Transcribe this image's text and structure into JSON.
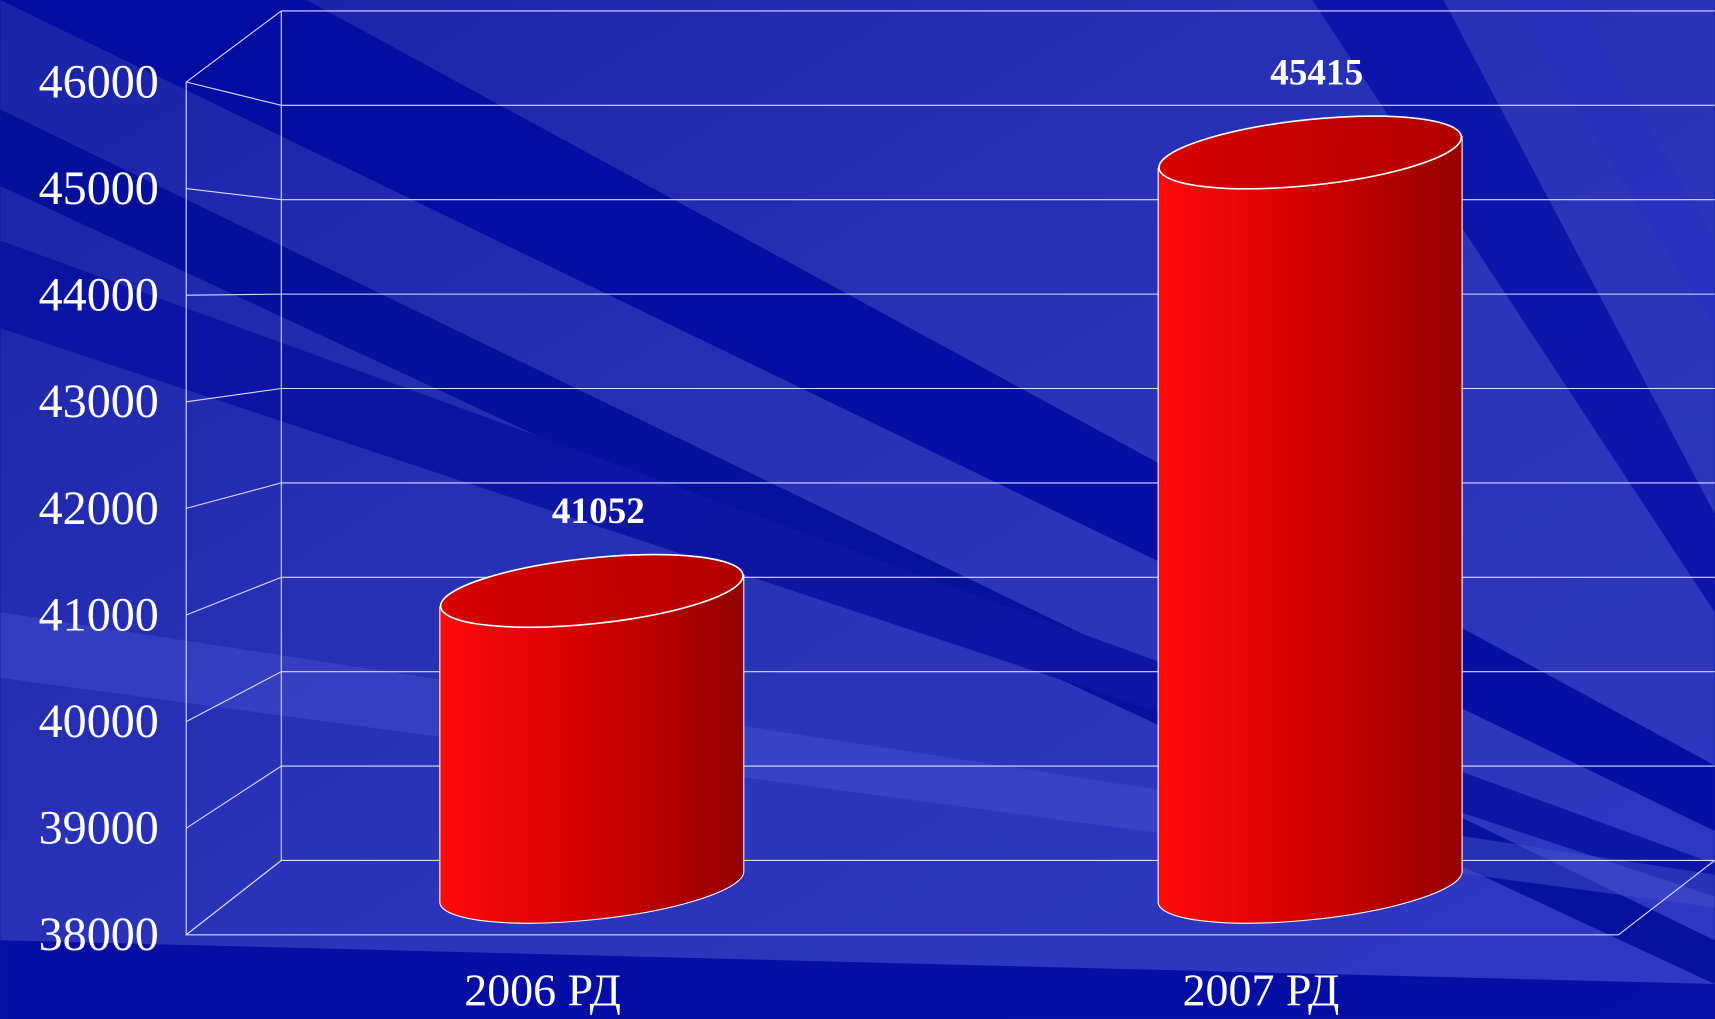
{
  "chart_data": {
    "type": "bar",
    "shape": "cylinder",
    "categories": [
      "2006 РД",
      "2007 РД"
    ],
    "values": [
      41052,
      45415
    ],
    "color": "#e00000",
    "ylim": [
      38000,
      47000
    ],
    "yticks": [
      38000,
      39000,
      40000,
      41000,
      42000,
      43000,
      44000,
      45000,
      46000
    ],
    "grid": true
  }
}
